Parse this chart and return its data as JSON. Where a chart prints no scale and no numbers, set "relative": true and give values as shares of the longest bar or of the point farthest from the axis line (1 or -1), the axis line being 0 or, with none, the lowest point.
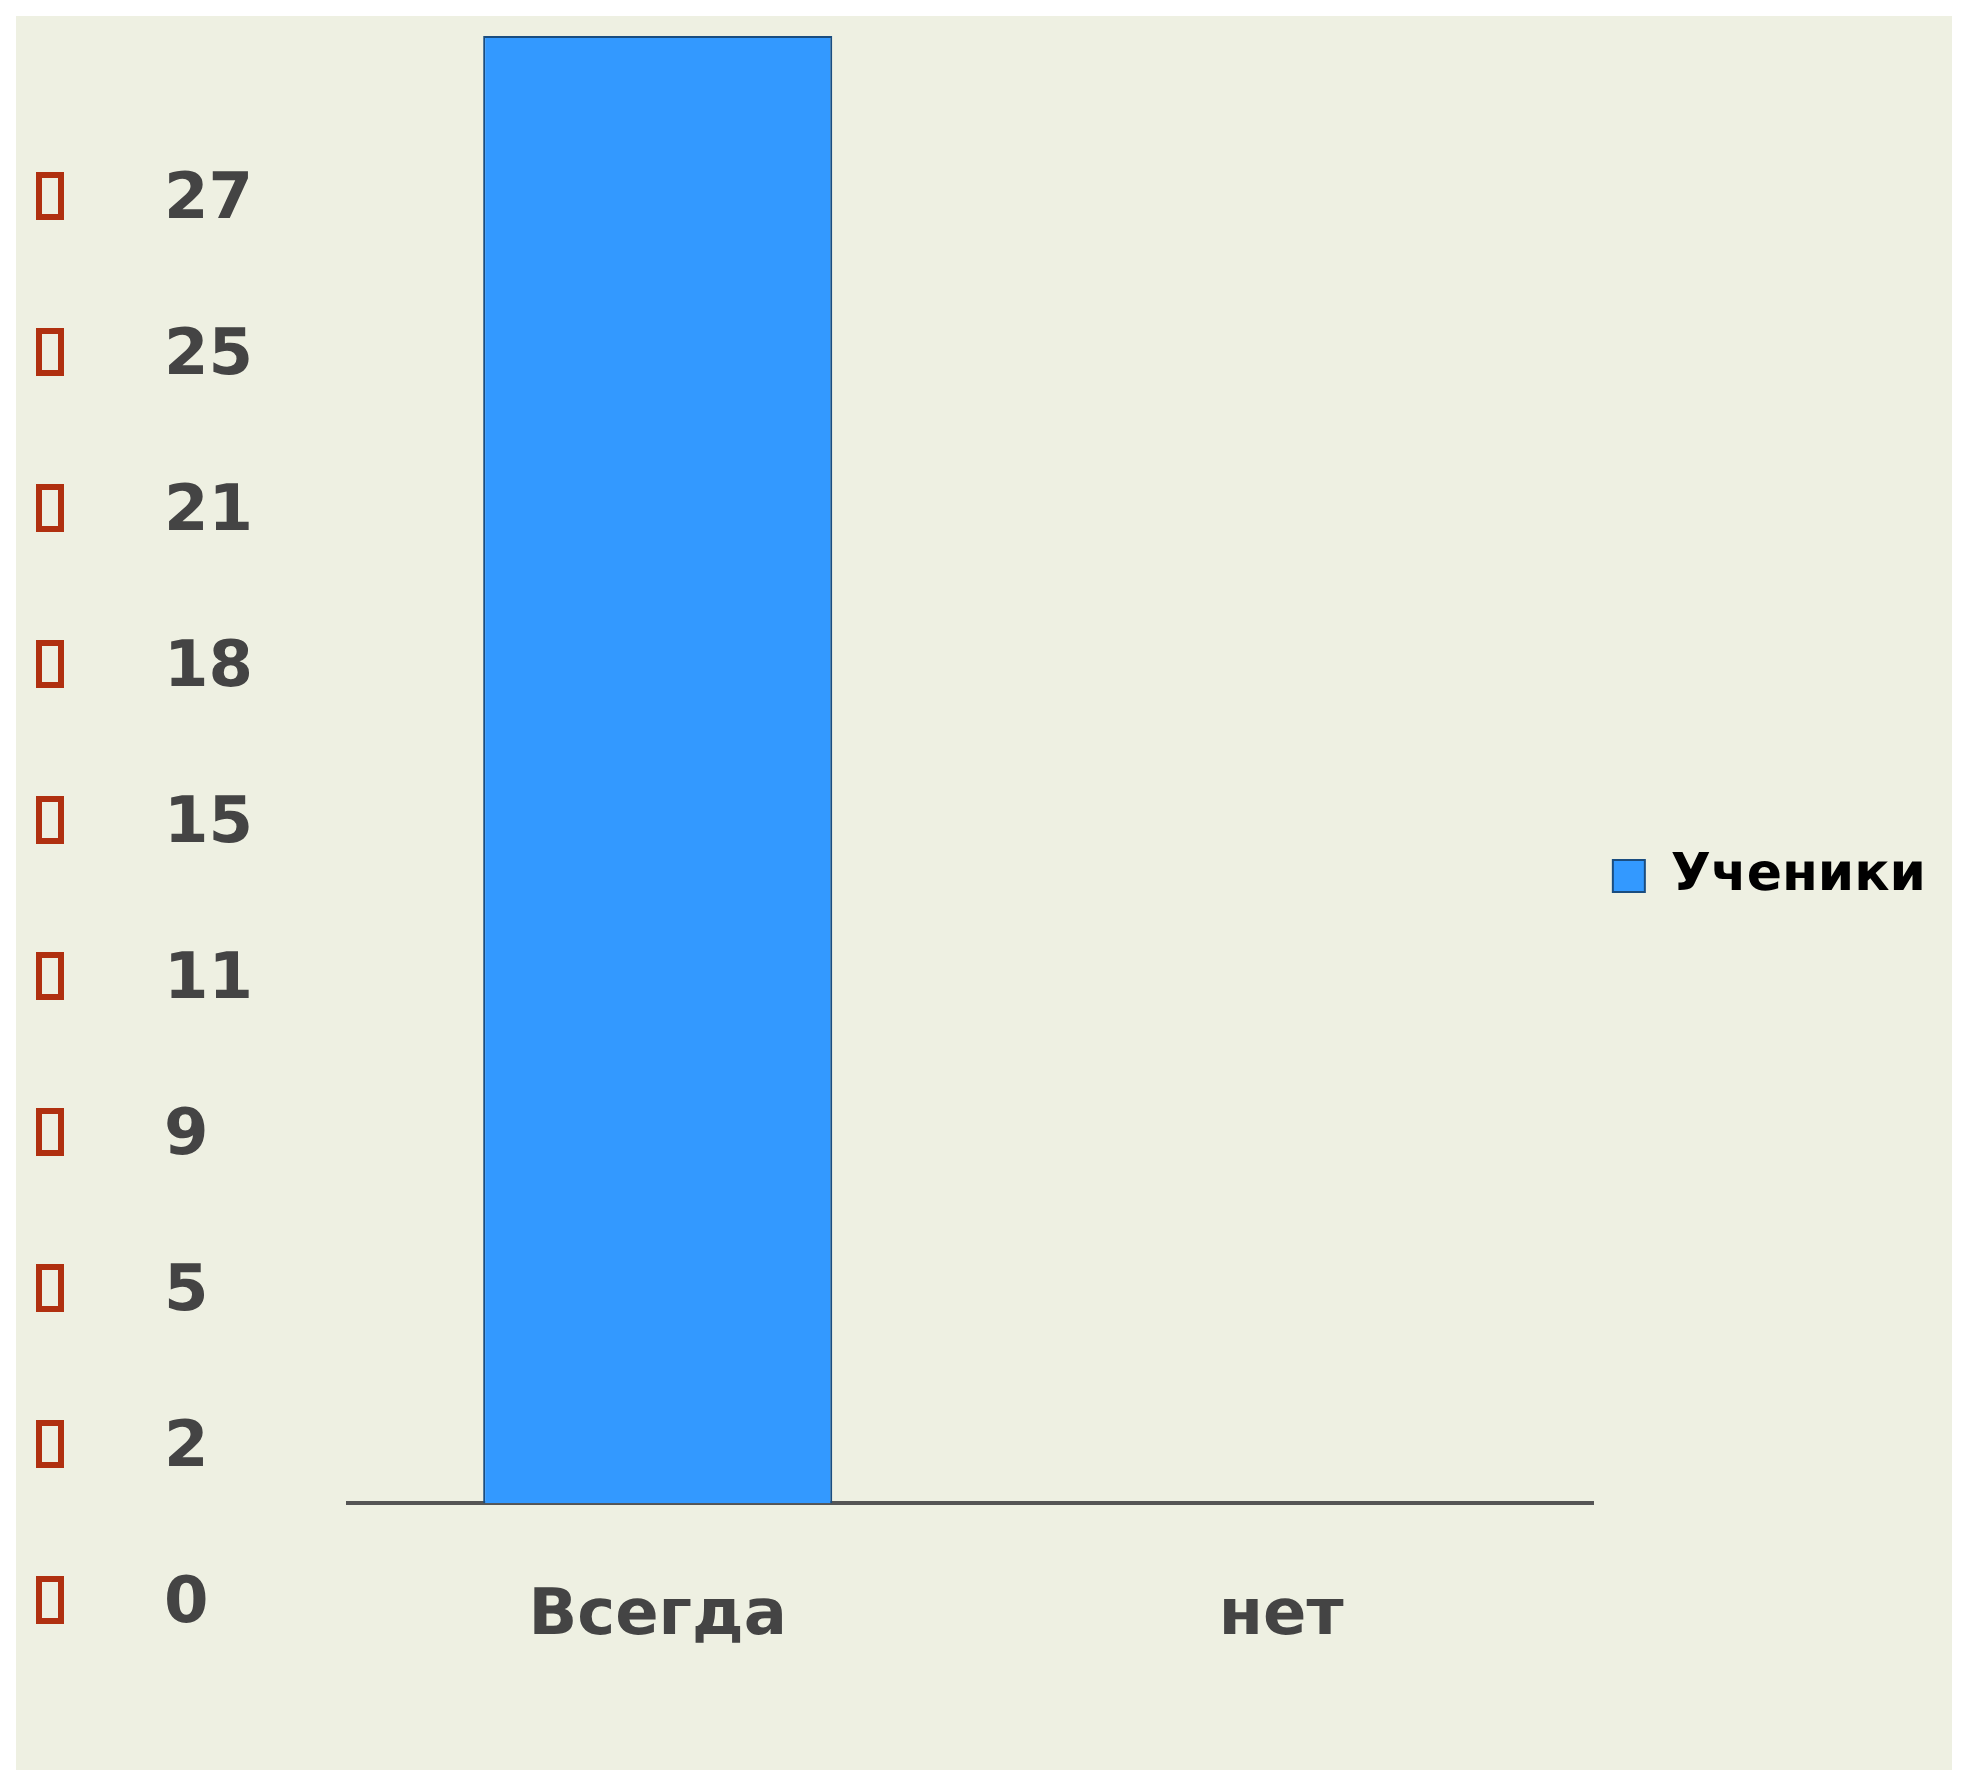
{
  "chart_data": {
    "type": "bar",
    "categories": [
      "Всегда",
      "нет"
    ],
    "series": [
      {
        "name": "Ученики",
        "color": "#3399ff",
        "values": [
          1,
          0
        ]
      }
    ],
    "relative": true,
    "legend": "right",
    "annotations": [
      "27",
      "25",
      "21",
      "18",
      "15",
      "11",
      "9",
      "5",
      "2",
      "0"
    ]
  }
}
